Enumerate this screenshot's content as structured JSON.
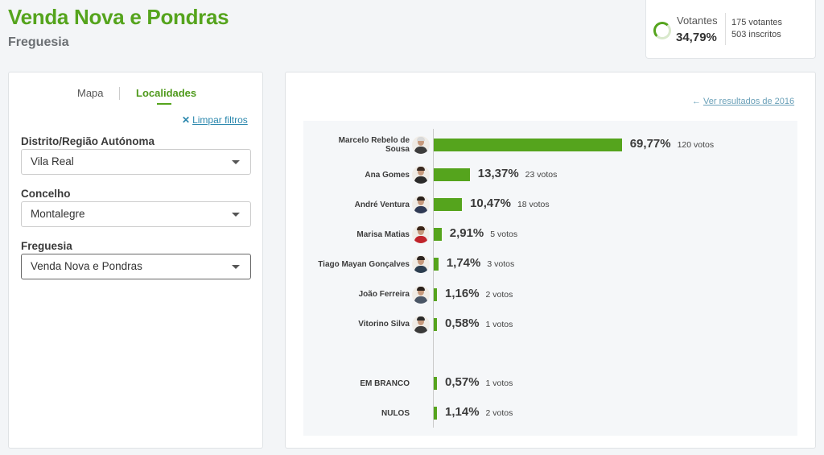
{
  "header": {
    "title": "Venda Nova e Pondras",
    "subtitle": "Freguesia"
  },
  "votantes": {
    "label": "Votantes",
    "percent": "34,79%",
    "voters": "175 votantes",
    "registered": "503 inscritos",
    "accent": "#55a41d"
  },
  "filters": {
    "tabs": [
      {
        "label": "Mapa",
        "active": false
      },
      {
        "label": "Localidades",
        "active": true
      }
    ],
    "clear_label": "Limpar filtros",
    "fields": [
      {
        "label": "Distrito/Região Autónoma",
        "value": "Vila Real"
      },
      {
        "label": "Concelho",
        "value": "Montalegre"
      },
      {
        "label": "Freguesia",
        "value": "Venda Nova e Pondras"
      }
    ]
  },
  "results": {
    "prev_link": "Ver resultados de 2016",
    "bar_color": "#55a41d",
    "candidates": [
      {
        "name": "Marcelo Rebelo de Sousa",
        "percent": 69.77,
        "percent_label": "69,77%",
        "votes_label": "120 votos",
        "icon": "portrait-icon"
      },
      {
        "name": "Ana Gomes",
        "percent": 13.37,
        "percent_label": "13,37%",
        "votes_label": "23 votos",
        "icon": "portrait-icon"
      },
      {
        "name": "André Ventura",
        "percent": 10.47,
        "percent_label": "10,47%",
        "votes_label": "18 votos",
        "icon": "portrait-icon"
      },
      {
        "name": "Marisa Matias",
        "percent": 2.91,
        "percent_label": "2,91%",
        "votes_label": "5 votos",
        "icon": "portrait-icon"
      },
      {
        "name": "Tiago Mayan Gonçalves",
        "percent": 1.74,
        "percent_label": "1,74%",
        "votes_label": "3 votos",
        "icon": "portrait-icon"
      },
      {
        "name": "João Ferreira",
        "percent": 1.16,
        "percent_label": "1,16%",
        "votes_label": "2 votos",
        "icon": "portrait-icon"
      },
      {
        "name": "Vitorino Silva",
        "percent": 0.58,
        "percent_label": "0,58%",
        "votes_label": "1 votos",
        "icon": "portrait-icon"
      }
    ],
    "others": [
      {
        "name": "EM BRANCO",
        "percent": 0.57,
        "percent_label": "0,57%",
        "votes_label": "1 votos"
      },
      {
        "name": "NULOS",
        "percent": 1.14,
        "percent_label": "1,14%",
        "votes_label": "2 votos"
      }
    ]
  }
}
